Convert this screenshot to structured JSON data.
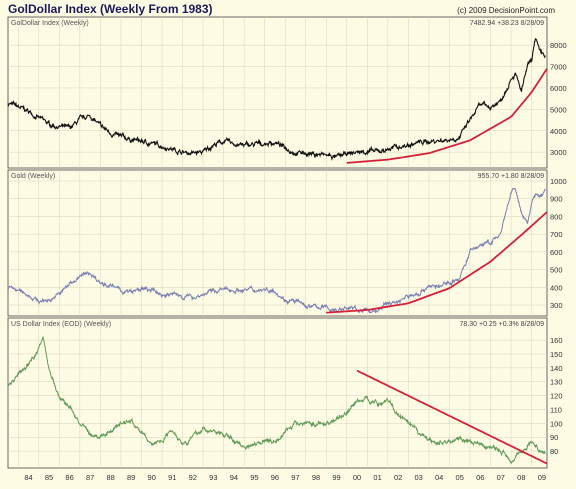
{
  "header": {
    "title": "GolDollar Index (Weekly From 1983)",
    "copyright": "(c) 2009 DecisionPoint.com"
  },
  "x_ticks": [
    "84",
    "85",
    "86",
    "87",
    "88",
    "89",
    "90",
    "91",
    "92",
    "93",
    "94",
    "95",
    "96",
    "97",
    "98",
    "99",
    "00",
    "01",
    "02",
    "03",
    "04",
    "05",
    "06",
    "07",
    "08",
    "09"
  ],
  "colors": {
    "background": "#fefbe4",
    "grid": "#d6d3bd",
    "goldollar_line": "#111111",
    "gold_line": "#7a7fb3",
    "usd_line": "#5f9a5a",
    "trend_line": "#d5203a"
  },
  "chart_data": [
    {
      "type": "line",
      "title": "GolDollar Index (Weekly)",
      "readout": "7482.94 +38.23 8/28/09",
      "x_range": [
        1983.5,
        2009.75
      ],
      "ylim": [
        2400,
        8800
      ],
      "yticks": [
        3000,
        4000,
        5000,
        6000,
        7000,
        8000
      ],
      "x": [
        1983.5,
        1984,
        1984.5,
        1985,
        1985.5,
        1986,
        1986.5,
        1987,
        1987.5,
        1988,
        1988.5,
        1989,
        1989.5,
        1990,
        1990.5,
        1991,
        1991.5,
        1992,
        1992.5,
        1993,
        1993.5,
        1994,
        1994.5,
        1995,
        1995.5,
        1996,
        1996.5,
        1997,
        1997.5,
        1998,
        1998.5,
        1999,
        1999.5,
        2000,
        2000.5,
        2001,
        2001.5,
        2002,
        2002.5,
        2003,
        2003.5,
        2004,
        2004.5,
        2005,
        2005.5,
        2006,
        2006.5,
        2007,
        2007.5,
        2008,
        2008.2,
        2008.5,
        2008.8,
        2009,
        2009.2,
        2009.4,
        2009.66
      ],
      "y": [
        5300,
        5100,
        4900,
        4600,
        4300,
        4200,
        4100,
        4500,
        4700,
        4200,
        3900,
        3700,
        3600,
        3500,
        3400,
        3300,
        3150,
        3000,
        2950,
        3000,
        3350,
        3500,
        3400,
        3300,
        3350,
        3400,
        3450,
        3200,
        3000,
        2950,
        2900,
        2850,
        2750,
        2900,
        3000,
        3050,
        3000,
        3150,
        3250,
        3300,
        3450,
        3500,
        3550,
        3600,
        3700,
        4500,
        5200,
        5100,
        5400,
        6500,
        6700,
        5800,
        7000,
        7200,
        8400,
        7600,
        7482.94
      ],
      "trend": {
        "x": [
          2000,
          2002,
          2004,
          2006,
          2008,
          2009,
          2009.75
        ],
        "y": [
          2500,
          2650,
          2950,
          3550,
          4650,
          5800,
          6900
        ]
      }
    },
    {
      "type": "line",
      "title": "Gold (Weekly)",
      "readout": "955.70 +1.80 8/28/09",
      "x_range": [
        1983.5,
        2009.75
      ],
      "ylim": [
        255,
        1000
      ],
      "yticks": [
        300,
        400,
        500,
        600,
        700,
        800,
        900,
        1000
      ],
      "x": [
        1983.5,
        1984,
        1984.5,
        1985,
        1985.5,
        1986,
        1986.5,
        1987,
        1987.5,
        1988,
        1988.5,
        1989,
        1989.5,
        1990,
        1990.5,
        1991,
        1991.5,
        1992,
        1992.5,
        1993,
        1993.5,
        1994,
        1994.5,
        1995,
        1995.5,
        1996,
        1996.5,
        1997,
        1997.5,
        1998,
        1998.5,
        1999,
        1999.5,
        2000,
        2000.5,
        2001,
        2001.5,
        2002,
        2002.5,
        2003,
        2003.5,
        2004,
        2004.5,
        2005,
        2005.5,
        2006,
        2006.5,
        2007,
        2007.5,
        2008,
        2008.2,
        2008.5,
        2008.8,
        2009,
        2009.2,
        2009.4,
        2009.66
      ],
      "y": [
        400,
        380,
        360,
        320,
        330,
        360,
        420,
        460,
        480,
        430,
        410,
        380,
        370,
        390,
        380,
        360,
        360,
        350,
        345,
        360,
        380,
        385,
        385,
        385,
        385,
        390,
        385,
        330,
        320,
        295,
        290,
        285,
        270,
        285,
        275,
        265,
        270,
        310,
        320,
        350,
        365,
        410,
        400,
        430,
        450,
        600,
        640,
        650,
        700,
        930,
        960,
        820,
        750,
        880,
        930,
        900,
        955.7
      ],
      "trend": {
        "x": [
          1999,
          2001,
          2003,
          2005,
          2007,
          2008.5,
          2009.75
        ],
        "y": [
          257,
          272,
          310,
          395,
          545,
          695,
          825
        ]
      }
    },
    {
      "type": "line",
      "title": "US Dollar Index (EOD) (Weekly)",
      "readout": "78.30 +0.25 +0.3% 8/28/09",
      "x_range": [
        1983.5,
        2009.75
      ],
      "ylim": [
        70,
        168
      ],
      "yticks": [
        80,
        90,
        100,
        110,
        120,
        130,
        140,
        150,
        160
      ],
      "x": [
        1983.5,
        1984,
        1984.5,
        1985,
        1985.2,
        1985.5,
        1986,
        1986.5,
        1987,
        1987.5,
        1988,
        1988.5,
        1989,
        1989.5,
        1990,
        1990.5,
        1991,
        1991.5,
        1992,
        1992.5,
        1993,
        1993.5,
        1994,
        1994.5,
        1995,
        1995.5,
        1996,
        1996.5,
        1997,
        1997.5,
        1998,
        1998.5,
        1999,
        1999.5,
        2000,
        2000.5,
        2001,
        2001.5,
        2002,
        2002.5,
        2003,
        2003.5,
        2004,
        2004.5,
        2005,
        2005.5,
        2006,
        2006.5,
        2007,
        2007.5,
        2008,
        2008.3,
        2008.6,
        2008.9,
        2009,
        2009.3,
        2009.66
      ],
      "y": [
        127,
        135,
        142,
        155,
        162,
        140,
        118,
        112,
        100,
        92,
        90,
        95,
        100,
        102,
        93,
        85,
        88,
        96,
        86,
        90,
        96,
        94,
        92,
        88,
        83,
        86,
        88,
        87,
        95,
        99,
        101,
        99,
        100,
        103,
        108,
        116,
        118,
        114,
        117,
        106,
        99,
        93,
        88,
        86,
        87,
        90,
        86,
        84,
        83,
        80,
        74,
        78,
        80,
        86,
        86,
        82,
        78.3
      ],
      "trend": {
        "x": [
          2000.5,
          2009.75
        ],
        "y": [
          138,
          71
        ]
      }
    }
  ]
}
